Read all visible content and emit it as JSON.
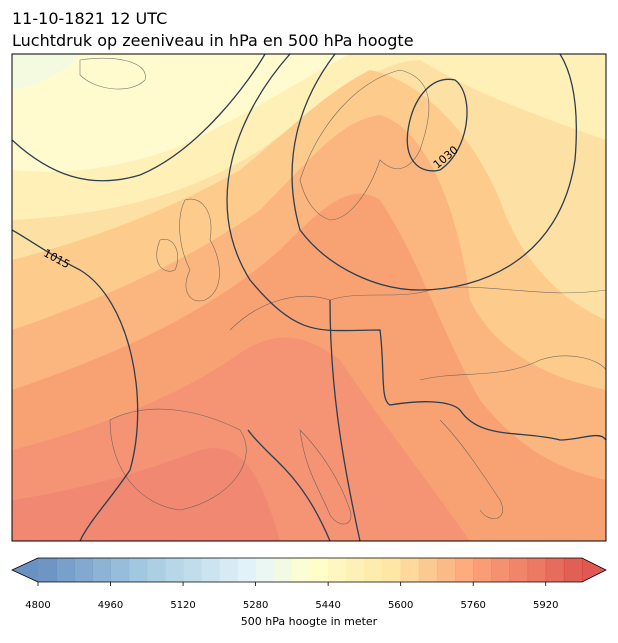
{
  "header": {
    "title": "11-10-1821 12 UTC",
    "subtitle": "Luchtdruk op zeeniveau in hPa en 500 hPa hoogte"
  },
  "map": {
    "isobar_labels": [
      "1015",
      "1030"
    ]
  },
  "colorbar": {
    "label": "500 hPa hoogte in meter",
    "range": [
      4800,
      6000
    ],
    "ticks": [
      4800,
      4960,
      5120,
      5280,
      5440,
      5600,
      5760,
      5920
    ]
  }
}
